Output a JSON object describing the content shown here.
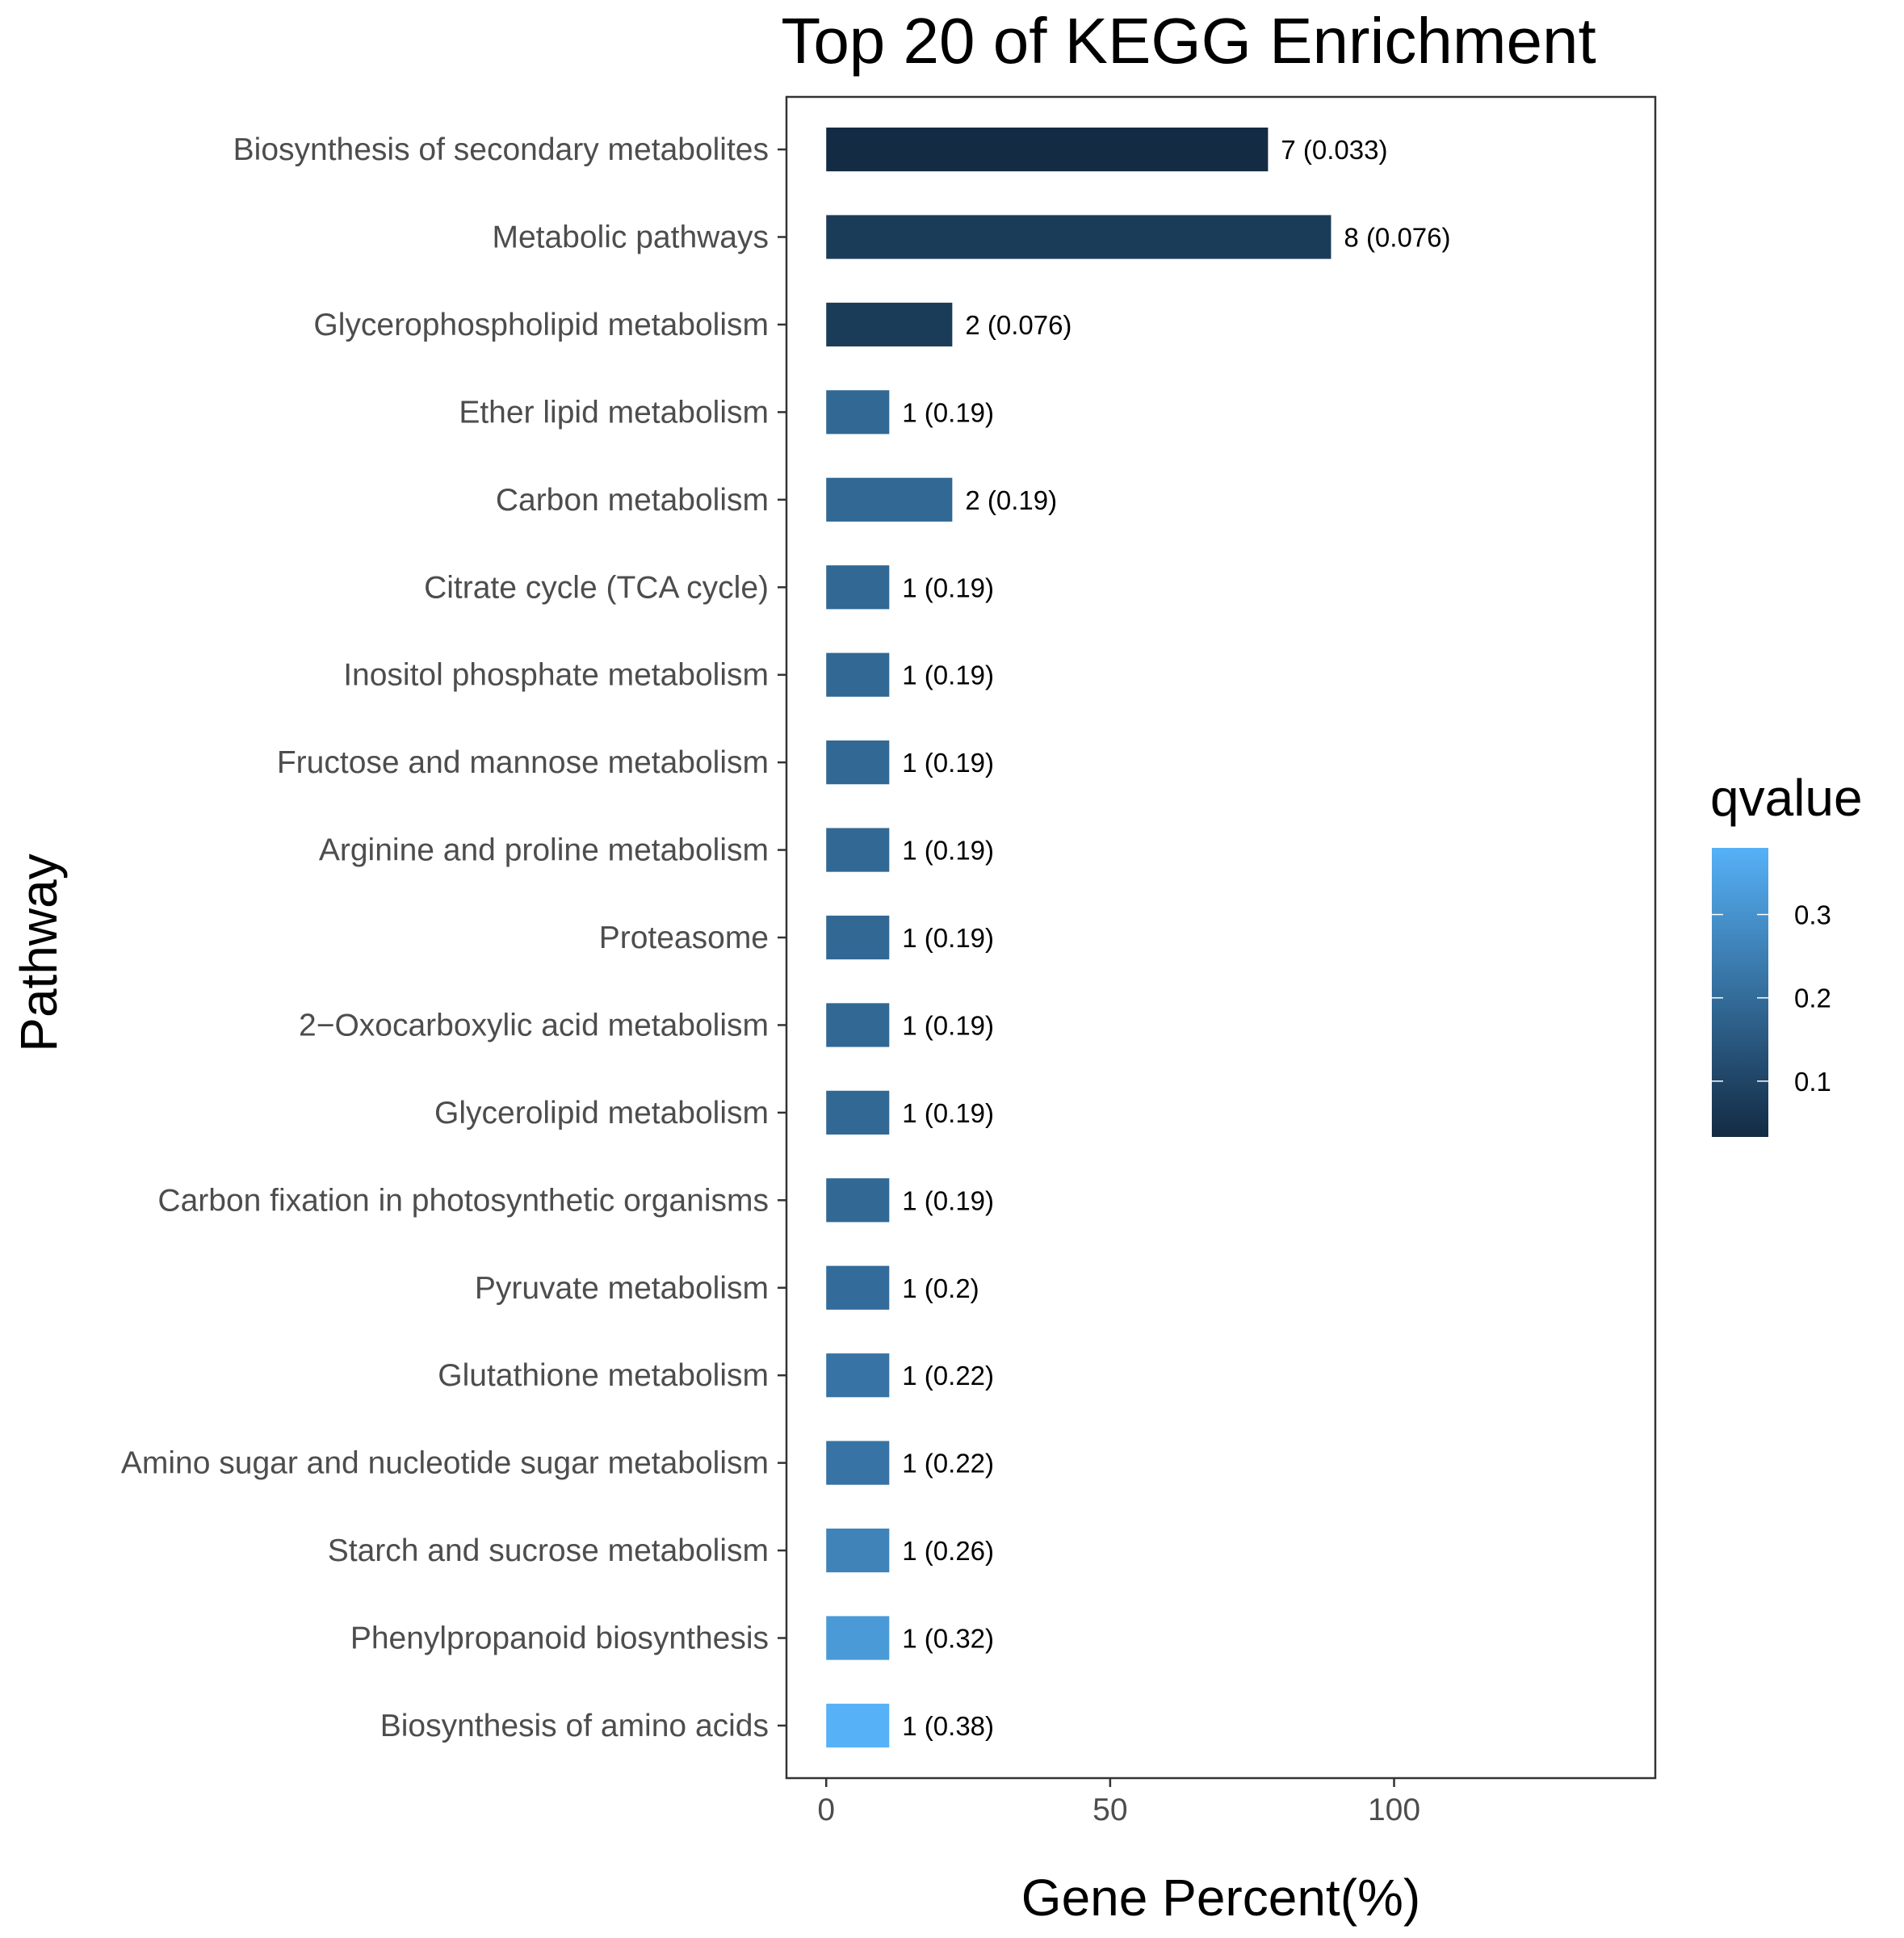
{
  "chart_data": {
    "type": "bar",
    "orientation": "horizontal",
    "title": "Top 20 of KEGG Enrichment",
    "xlabel": "Gene Percent(%)",
    "ylabel": "Pathway",
    "xlim": [
      -7,
      146
    ],
    "xticks": [
      0,
      50,
      100
    ],
    "grid": false,
    "legend": {
      "title": "qvalue",
      "placement": "right",
      "ticks": [
        0.1,
        0.2,
        0.3
      ],
      "range": [
        0.033,
        0.38
      ],
      "color_low": "#132B43",
      "color_high": "#56B1F7"
    },
    "categories": [
      "Biosynthesis of secondary metabolites",
      "Metabolic pathways",
      "Glycerophospholipid metabolism",
      "Ether lipid metabolism",
      "Carbon metabolism",
      "Citrate cycle (TCA cycle)",
      "Inositol phosphate metabolism",
      "Fructose and mannose metabolism",
      "Arginine and proline metabolism",
      "Proteasome",
      "2−Oxocarboxylic acid metabolism",
      "Glycerolipid metabolism",
      "Carbon fixation in photosynthetic organisms",
      "Pyruvate metabolism",
      "Glutathione metabolism",
      "Amino sugar and nucleotide sugar metabolism",
      "Starch and sucrose metabolism",
      "Phenylpropanoid biosynthesis",
      "Biosynthesis of amino acids"
    ],
    "values": [
      77.8,
      88.9,
      22.2,
      11.1,
      22.2,
      11.1,
      11.1,
      11.1,
      11.1,
      11.1,
      11.1,
      11.1,
      11.1,
      11.1,
      11.1,
      11.1,
      11.1,
      11.1,
      11.1
    ],
    "qvalues": [
      0.033,
      0.076,
      0.076,
      0.19,
      0.19,
      0.19,
      0.19,
      0.19,
      0.19,
      0.19,
      0.19,
      0.19,
      0.19,
      0.2,
      0.22,
      0.22,
      0.26,
      0.32,
      0.38
    ],
    "bar_labels": [
      "7 (0.033)",
      "8 (0.076)",
      "2 (0.076)",
      "1 (0.19)",
      "2 (0.19)",
      "1 (0.19)",
      "1 (0.19)",
      "1 (0.19)",
      "1 (0.19)",
      "1 (0.19)",
      "1 (0.19)",
      "1 (0.19)",
      "1 (0.19)",
      "1 (0.2)",
      "1 (0.22)",
      "1 (0.22)",
      "1 (0.26)",
      "1 (0.32)",
      "1 (0.38)"
    ]
  }
}
